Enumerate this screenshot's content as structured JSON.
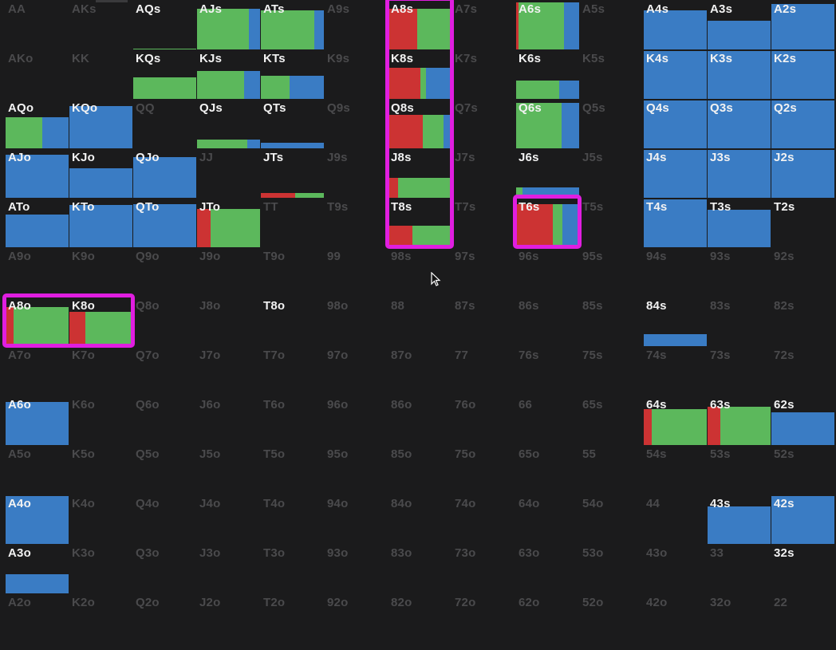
{
  "colors": {
    "raise": "#cc3333",
    "call": "#5cb85c",
    "fold": "#3a7cc4"
  },
  "grid": {
    "rows": [
      [
        "AA",
        "AKs",
        "AQs",
        "AJs",
        "ATs",
        "A9s",
        "A8s",
        "A7s",
        "A6s",
        "A5s",
        "A4s",
        "A3s",
        "A2s"
      ],
      [
        "AKo",
        "KK",
        "KQs",
        "KJs",
        "KTs",
        "K9s",
        "K8s",
        "K7s",
        "K6s",
        "K5s",
        "K4s",
        "K3s",
        "K2s"
      ],
      [
        "AQo",
        "KQo",
        "QQ",
        "QJs",
        "QTs",
        "Q9s",
        "Q8s",
        "Q7s",
        "Q6s",
        "Q5s",
        "Q4s",
        "Q3s",
        "Q2s"
      ],
      [
        "AJo",
        "KJo",
        "QJo",
        "JJ",
        "JTs",
        "J9s",
        "J8s",
        "J7s",
        "J6s",
        "J5s",
        "J4s",
        "J3s",
        "J2s"
      ],
      [
        "ATo",
        "KTo",
        "QTo",
        "JTo",
        "TT",
        "T9s",
        "T8s",
        "T7s",
        "T6s",
        "T5s",
        "T4s",
        "T3s",
        "T2s"
      ],
      [
        "A9o",
        "K9o",
        "Q9o",
        "J9o",
        "T9o",
        "99",
        "98s",
        "97s",
        "96s",
        "95s",
        "94s",
        "93s",
        "92s"
      ],
      [
        "A8o",
        "K8o",
        "Q8o",
        "J8o",
        "T8o",
        "98o",
        "88",
        "87s",
        "86s",
        "85s",
        "84s",
        "83s",
        "82s"
      ],
      [
        "A7o",
        "K7o",
        "Q7o",
        "J7o",
        "T7o",
        "97o",
        "87o",
        "77",
        "76s",
        "75s",
        "74s",
        "73s",
        "72s"
      ],
      [
        "A6o",
        "K6o",
        "Q6o",
        "J6o",
        "T6o",
        "96o",
        "86o",
        "76o",
        "66",
        "65s",
        "64s",
        "63s",
        "62s"
      ],
      [
        "A5o",
        "K5o",
        "Q5o",
        "J5o",
        "T5o",
        "95o",
        "85o",
        "75o",
        "65o",
        "55",
        "54s",
        "53s",
        "52s"
      ],
      [
        "A4o",
        "K4o",
        "Q4o",
        "J4o",
        "T4o",
        "94o",
        "84o",
        "74o",
        "64o",
        "54o",
        "44",
        "43s",
        "42s"
      ],
      [
        "A3o",
        "K3o",
        "Q3o",
        "J3o",
        "T3o",
        "93o",
        "83o",
        "73o",
        "63o",
        "53o",
        "43o",
        "33",
        "32s"
      ],
      [
        "A2o",
        "K2o",
        "Q2o",
        "J2o",
        "T2o",
        "92o",
        "82o",
        "72o",
        "62o",
        "52o",
        "42o",
        "32o",
        "22"
      ]
    ],
    "active": [
      "AQs",
      "AJs",
      "ATs",
      "A8s",
      "A6s",
      "A4s",
      "A3s",
      "A2s",
      "KQs",
      "KJs",
      "KTs",
      "K8s",
      "K6s",
      "K4s",
      "K3s",
      "K2s",
      "AQo",
      "KQo",
      "QJs",
      "QTs",
      "Q8s",
      "Q6s",
      "Q4s",
      "Q3s",
      "Q2s",
      "AJo",
      "KJo",
      "QJo",
      "JTs",
      "J8s",
      "J6s",
      "J4s",
      "J3s",
      "J2s",
      "ATo",
      "KTo",
      "QTo",
      "JTo",
      "T8s",
      "T6s",
      "T4s",
      "T3s",
      "T2s",
      "A8o",
      "K8o",
      "T8o",
      "84s",
      "A6o",
      "64s",
      "63s",
      "62s",
      "A4o",
      "43s",
      "42s",
      "A3o",
      "32s"
    ],
    "hands": {
      "AQs": {
        "level": 0.02,
        "raise": 0,
        "call": 1,
        "fold": 0
      },
      "AJs": {
        "level": 0.85,
        "raise": 0,
        "call": 0.82,
        "fold": 0.18
      },
      "ATs": {
        "level": 0.82,
        "raise": 0,
        "call": 0.85,
        "fold": 0.15
      },
      "A8s": {
        "level": 0.85,
        "raise": 0.45,
        "call": 0.55,
        "fold": 0
      },
      "A6s": {
        "level": 0.98,
        "raise": 0.04,
        "call": 0.72,
        "fold": 0.24
      },
      "A4s": {
        "level": 0.82,
        "raise": 0,
        "call": 0,
        "fold": 1
      },
      "A3s": {
        "level": 0.6,
        "raise": 0,
        "call": 0,
        "fold": 1
      },
      "A2s": {
        "level": 0.95,
        "raise": 0,
        "call": 0,
        "fold": 1
      },
      "KQs": {
        "level": 0.45,
        "raise": 0,
        "call": 1,
        "fold": 0
      },
      "KJs": {
        "level": 0.58,
        "raise": 0,
        "call": 0.75,
        "fold": 0.25
      },
      "KTs": {
        "level": 0.48,
        "raise": 0,
        "call": 0.45,
        "fold": 0.55
      },
      "K8s": {
        "level": 0.65,
        "raise": 0.5,
        "call": 0.1,
        "fold": 0.4
      },
      "K6s": {
        "level": 0.38,
        "raise": 0,
        "call": 0.68,
        "fold": 0.32
      },
      "K4s": {
        "level": 1,
        "raise": 0,
        "call": 0,
        "fold": 1
      },
      "K3s": {
        "level": 1,
        "raise": 0,
        "call": 0,
        "fold": 1
      },
      "K2s": {
        "level": 1,
        "raise": 0,
        "call": 0,
        "fold": 1
      },
      "AQo": {
        "level": 0.65,
        "raise": 0,
        "call": 0.58,
        "fold": 0.42
      },
      "KQo": {
        "level": 0.88,
        "raise": 0,
        "call": 0,
        "fold": 1
      },
      "QJs": {
        "level": 0.18,
        "raise": 0,
        "call": 0.8,
        "fold": 0.2
      },
      "QTs": {
        "level": 0.12,
        "raise": 0,
        "call": 0,
        "fold": 1
      },
      "Q8s": {
        "level": 0.7,
        "raise": 0.55,
        "call": 0.32,
        "fold": 0.13
      },
      "Q6s": {
        "level": 0.95,
        "raise": 0,
        "call": 0.72,
        "fold": 0.28
      },
      "Q4s": {
        "level": 1,
        "raise": 0,
        "call": 0,
        "fold": 1
      },
      "Q3s": {
        "level": 1,
        "raise": 0,
        "call": 0,
        "fold": 1
      },
      "Q2s": {
        "level": 1,
        "raise": 0,
        "call": 0,
        "fold": 1
      },
      "AJo": {
        "level": 0.9,
        "raise": 0,
        "call": 0,
        "fold": 1
      },
      "KJo": {
        "level": 0.62,
        "raise": 0,
        "call": 0,
        "fold": 1
      },
      "QJo": {
        "level": 0.85,
        "raise": 0,
        "call": 0,
        "fold": 1
      },
      "JTs": {
        "level": 0.1,
        "raise": 0.55,
        "call": 0.45,
        "fold": 0
      },
      "J8s": {
        "level": 0.42,
        "raise": 0.15,
        "call": 0.85,
        "fold": 0
      },
      "J6s": {
        "level": 0.22,
        "raise": 0,
        "call": 0.1,
        "fold": 0.9
      },
      "J4s": {
        "level": 1,
        "raise": 0,
        "call": 0,
        "fold": 1
      },
      "J3s": {
        "level": 1,
        "raise": 0,
        "call": 0,
        "fold": 1
      },
      "J2s": {
        "level": 1,
        "raise": 0,
        "call": 0,
        "fold": 1
      },
      "ATo": {
        "level": 0.68,
        "raise": 0,
        "call": 0,
        "fold": 1
      },
      "KTo": {
        "level": 0.88,
        "raise": 0,
        "call": 0,
        "fold": 1
      },
      "QTo": {
        "level": 0.9,
        "raise": 0,
        "call": 0,
        "fold": 1
      },
      "JTo": {
        "level": 0.8,
        "raise": 0.22,
        "call": 0.78,
        "fold": 0
      },
      "T8s": {
        "level": 0.45,
        "raise": 0.38,
        "call": 0.62,
        "fold": 0
      },
      "T6s": {
        "level": 0.9,
        "raise": 0.58,
        "call": 0.16,
        "fold": 0.26
      },
      "T4s": {
        "level": 1,
        "raise": 0,
        "call": 0,
        "fold": 1
      },
      "T3s": {
        "level": 0.78,
        "raise": 0,
        "call": 0,
        "fold": 1
      },
      "T2s": {
        "level": 0,
        "raise": 0,
        "call": 0,
        "fold": 1
      },
      "A8o": {
        "level": 0.82,
        "raise": 0.13,
        "call": 0.87,
        "fold": 0
      },
      "K8o": {
        "level": 0.72,
        "raise": 0.25,
        "call": 0.75,
        "fold": 0
      },
      "T8o": {
        "level": 0,
        "raise": 0,
        "call": 0,
        "fold": 1
      },
      "84s": {
        "level": 0.25,
        "raise": 0,
        "call": 0,
        "fold": 1
      },
      "A6o": {
        "level": 0.9,
        "raise": 0,
        "call": 0,
        "fold": 1
      },
      "64s": {
        "level": 0.75,
        "raise": 0.13,
        "call": 0.87,
        "fold": 0
      },
      "63s": {
        "level": 0.8,
        "raise": 0.2,
        "call": 0.8,
        "fold": 0
      },
      "62s": {
        "level": 0.68,
        "raise": 0,
        "call": 0,
        "fold": 1
      },
      "A4o": {
        "level": 1,
        "raise": 0,
        "call": 0,
        "fold": 1
      },
      "43s": {
        "level": 0.78,
        "raise": 0,
        "call": 0,
        "fold": 1
      },
      "42s": {
        "level": 1,
        "raise": 0,
        "call": 0,
        "fold": 1
      },
      "A3o": {
        "level": 0.4,
        "raise": 0,
        "call": 0,
        "fold": 1
      },
      "32s": {
        "level": 0,
        "raise": 0,
        "call": 0,
        "fold": 1
      }
    },
    "highlighted_groups": [
      [
        "A8s",
        "K8s",
        "Q8s",
        "J8s",
        "T8s"
      ],
      [
        "T6s"
      ],
      [
        "A8o",
        "K8o"
      ]
    ]
  }
}
